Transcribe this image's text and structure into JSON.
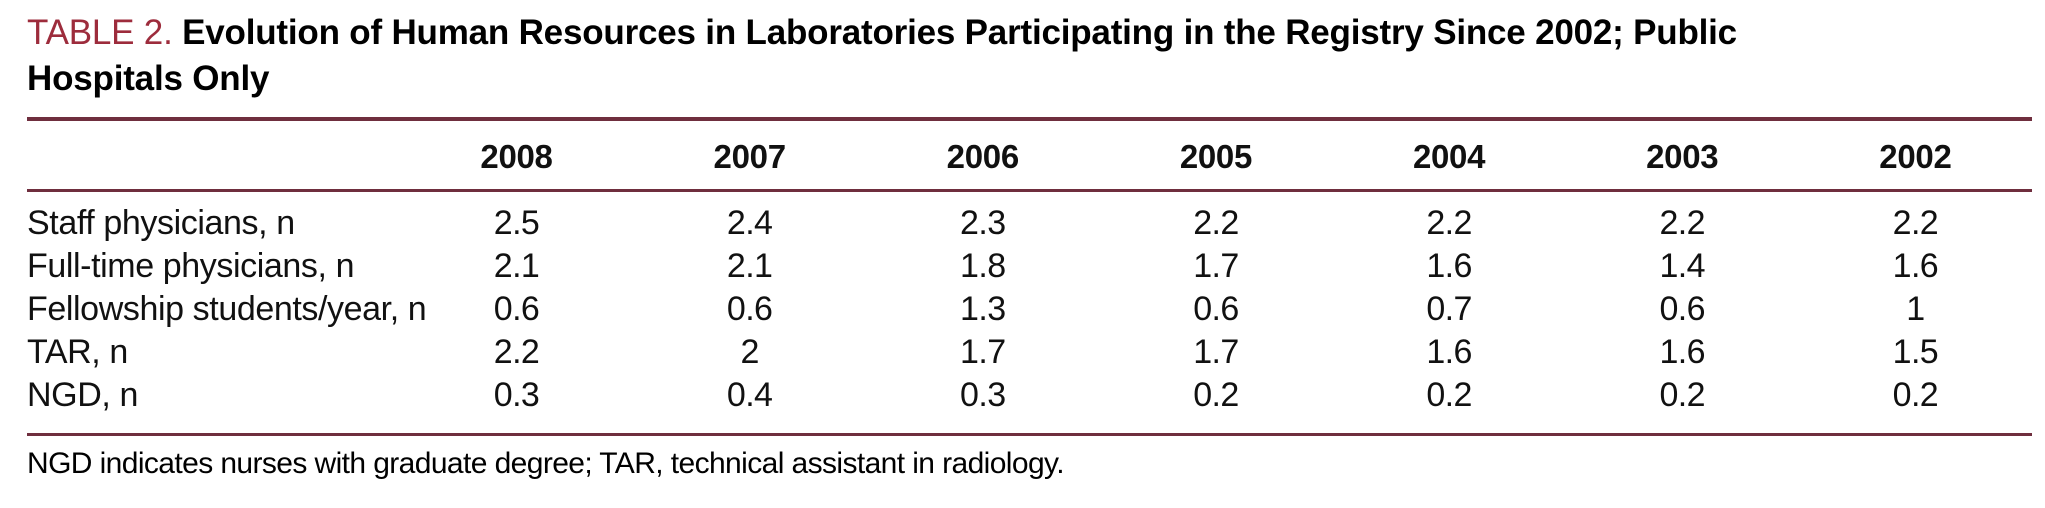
{
  "colors": {
    "accent": "#9d2c3c",
    "rule": "#6f2e3e",
    "text": "#111111"
  },
  "title": {
    "prefix": "TABLE 2.",
    "line1": "Evolution of Human Resources in Laboratories Participating in the Registry Since 2002; Public",
    "line2": "Hospitals Only"
  },
  "table": {
    "corner_label": "",
    "columns": [
      "2008",
      "2007",
      "2006",
      "2005",
      "2004",
      "2003",
      "2002"
    ],
    "rows": [
      {
        "label": "Staff physicians, n",
        "values": [
          "2.5",
          "2.4",
          "2.3",
          "2.2",
          "2.2",
          "2.2",
          "2.2"
        ]
      },
      {
        "label": "Full-time physicians, n",
        "values": [
          "2.1",
          "2.1",
          "1.8",
          "1.7",
          "1.6",
          "1.4",
          "1.6"
        ]
      },
      {
        "label": "Fellowship students/year, n",
        "values": [
          "0.6",
          "0.6",
          "1.3",
          "0.6",
          "0.7",
          "0.6",
          "1"
        ]
      },
      {
        "label": "TAR, n",
        "values": [
          "2.2",
          "2",
          "1.7",
          "1.7",
          "1.6",
          "1.6",
          "1.5"
        ]
      },
      {
        "label": "NGD, n",
        "values": [
          "0.3",
          "0.4",
          "0.3",
          "0.2",
          "0.2",
          "0.2",
          "0.2"
        ]
      }
    ]
  },
  "footnote": "NGD indicates nurses with graduate degree; TAR, technical assistant in radiology.",
  "chart_data": {
    "type": "table",
    "title": "TABLE 2. Evolution of Human Resources in Laboratories Participating in the Registry Since 2002; Public Hospitals Only",
    "categories": [
      "2008",
      "2007",
      "2006",
      "2005",
      "2004",
      "2003",
      "2002"
    ],
    "series": [
      {
        "name": "Staff physicians, n",
        "values": [
          2.5,
          2.4,
          2.3,
          2.2,
          2.2,
          2.2,
          2.2
        ]
      },
      {
        "name": "Full-time physicians, n",
        "values": [
          2.1,
          2.1,
          1.8,
          1.7,
          1.6,
          1.4,
          1.6
        ]
      },
      {
        "name": "Fellowship students/year, n",
        "values": [
          0.6,
          0.6,
          1.3,
          0.6,
          0.7,
          0.6,
          1
        ]
      },
      {
        "name": "TAR, n",
        "values": [
          2.2,
          2,
          1.7,
          1.7,
          1.6,
          1.6,
          1.5
        ]
      },
      {
        "name": "NGD, n",
        "values": [
          0.3,
          0.4,
          0.3,
          0.2,
          0.2,
          0.2,
          0.2
        ]
      }
    ],
    "footnote": "NGD indicates nurses with graduate degree; TAR, technical assistant in radiology."
  }
}
